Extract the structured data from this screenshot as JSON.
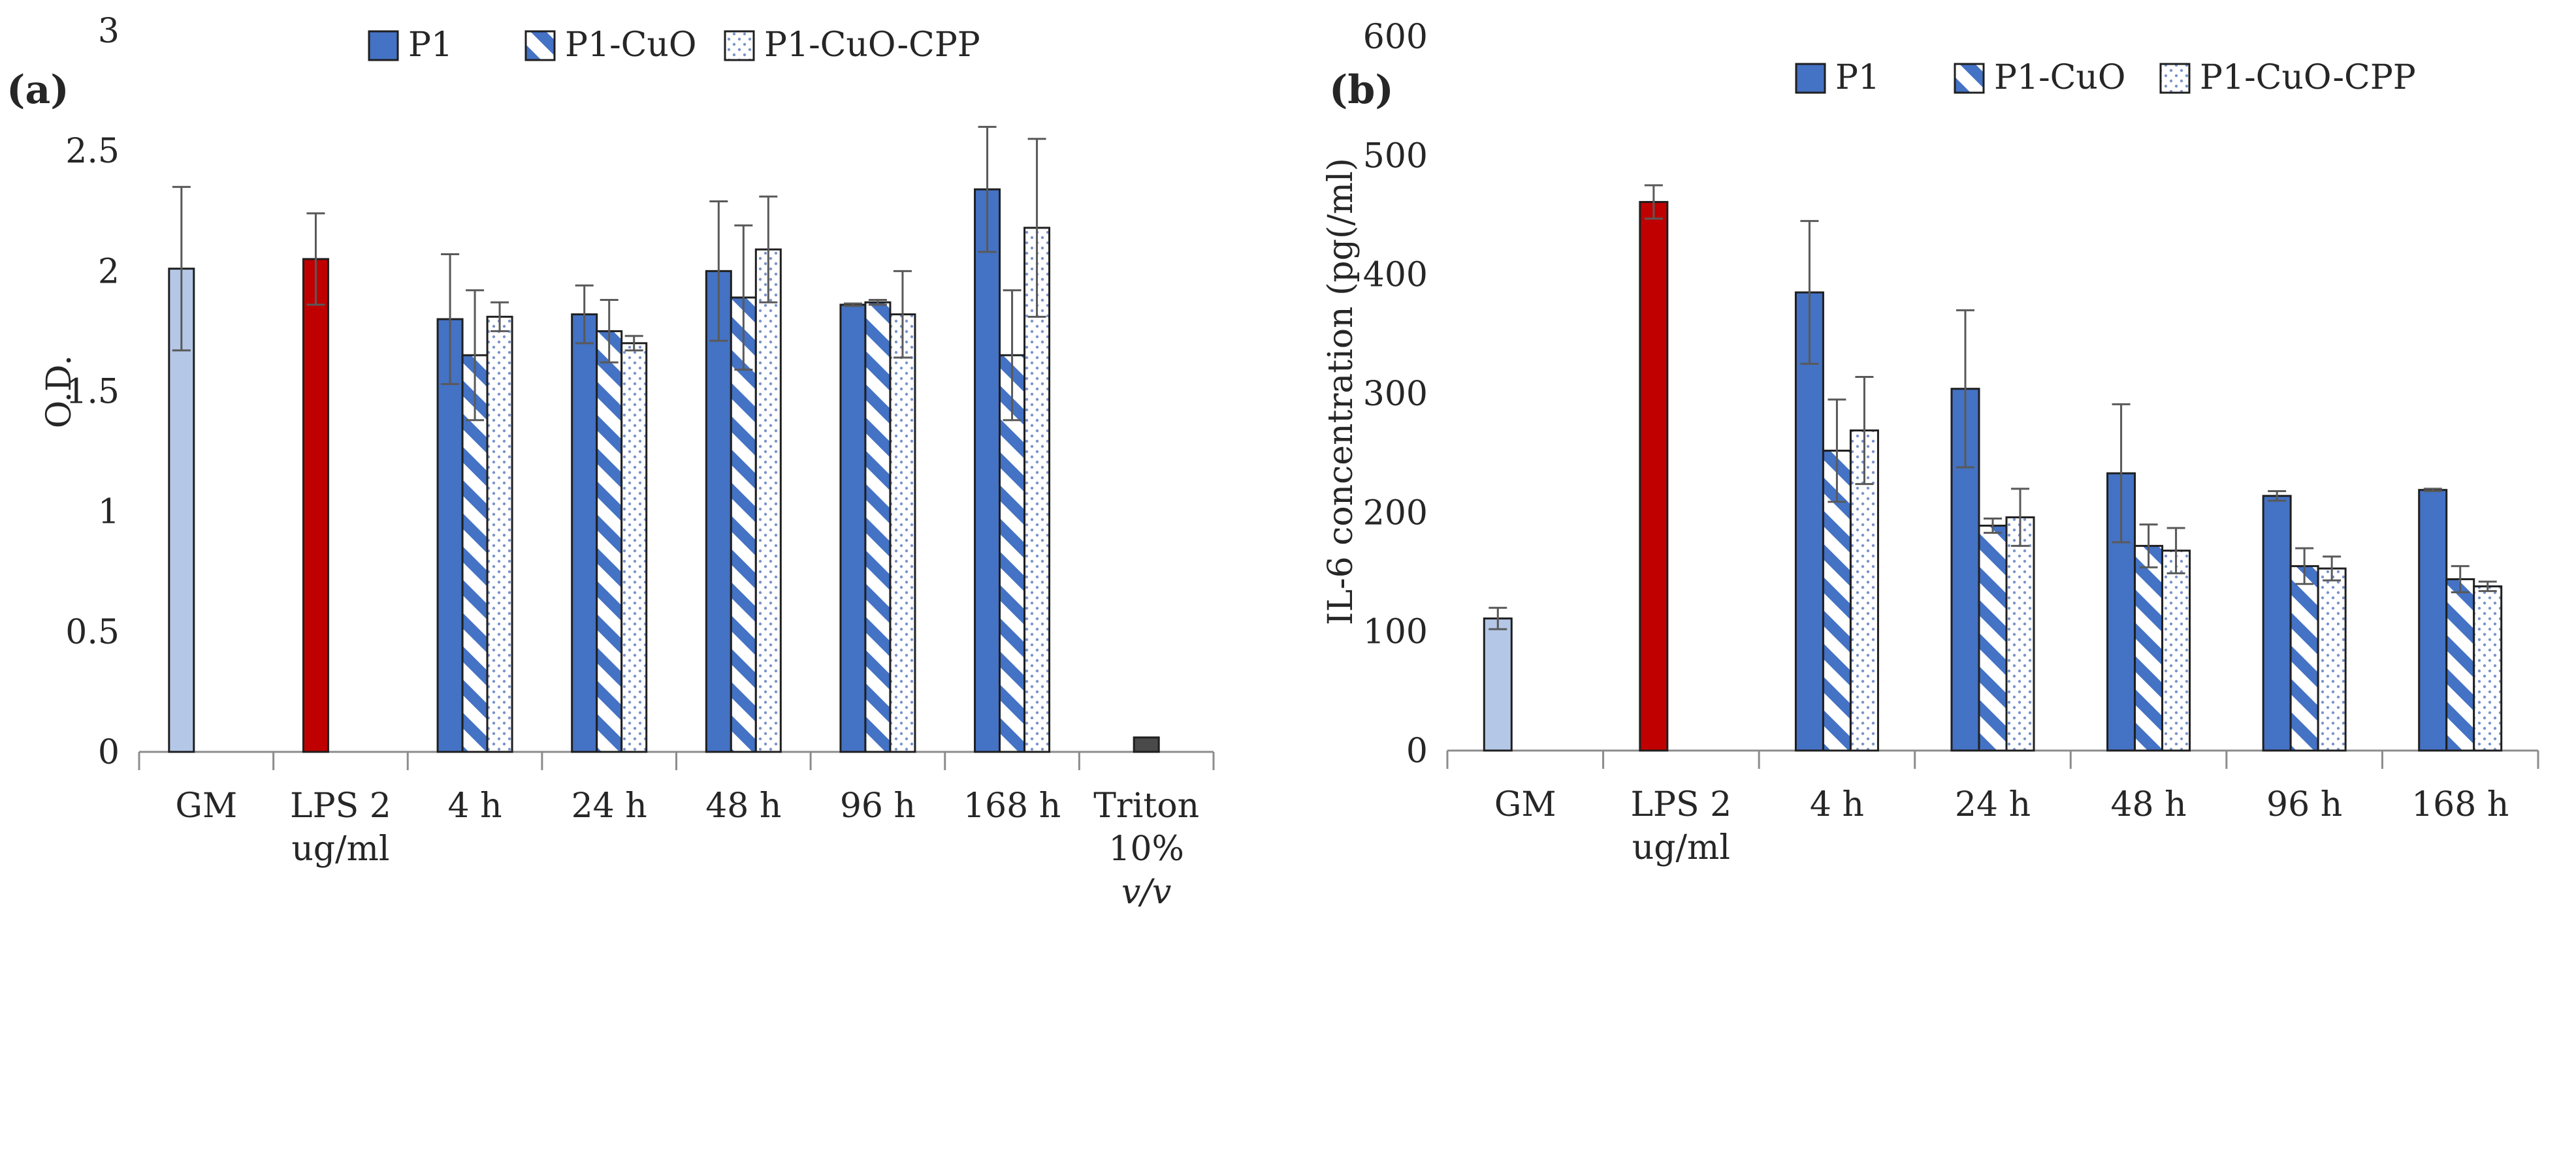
{
  "colors": {
    "gm": "#b4c7e7",
    "lps": "#c00000",
    "p1": "#4472c4",
    "triton": "#4a4a4a",
    "stripe": "#4472c4",
    "dots": "#7a93c9"
  },
  "legend": [
    {
      "key": "P1",
      "label": "P1",
      "pattern": "solid"
    },
    {
      "key": "P1-CuO",
      "label": "P1-CuO",
      "pattern": "stripes"
    },
    {
      "key": "P1-CuO-CPP",
      "label": "P1-CuO-CPP",
      "pattern": "dots"
    }
  ],
  "chart_data": [
    {
      "panel": "(a)",
      "type": "bar",
      "title": "",
      "xlabel": "",
      "ylabel": "O.D.",
      "ylim": [
        0,
        3
      ],
      "yticks": [
        "0",
        "0.5",
        "1",
        "1.5",
        "2",
        "2.5",
        "3"
      ],
      "ytick_values": [
        0,
        0.5,
        1,
        1.5,
        2,
        2.5,
        3
      ],
      "legend_position": "top",
      "groups": [
        {
          "label": [
            "GM"
          ],
          "bars": [
            {
              "series": "GM",
              "value": 2.01,
              "error": 0.34,
              "color": "gm",
              "pattern": "solid"
            }
          ]
        },
        {
          "label": [
            "LPS 2",
            "ug/ml"
          ],
          "bars": [
            {
              "series": "LPS",
              "value": 2.05,
              "error": 0.19,
              "color": "lps",
              "pattern": "solid"
            }
          ]
        },
        {
          "label": [
            "4 h"
          ],
          "bars": [
            {
              "series": "P1",
              "value": 1.8,
              "error": 0.27,
              "pattern": "solid"
            },
            {
              "series": "P1-CuO",
              "value": 1.65,
              "error": 0.27,
              "pattern": "stripes"
            },
            {
              "series": "P1-CuO-CPP",
              "value": 1.81,
              "error": 0.06,
              "pattern": "dots"
            }
          ]
        },
        {
          "label": [
            "24 h"
          ],
          "bars": [
            {
              "series": "P1",
              "value": 1.82,
              "error": 0.12,
              "pattern": "solid"
            },
            {
              "series": "P1-CuO",
              "value": 1.75,
              "error": 0.13,
              "pattern": "stripes"
            },
            {
              "series": "P1-CuO-CPP",
              "value": 1.7,
              "error": 0.03,
              "pattern": "dots"
            }
          ]
        },
        {
          "label": [
            "48 h"
          ],
          "bars": [
            {
              "series": "P1",
              "value": 2.0,
              "error": 0.29,
              "pattern": "solid"
            },
            {
              "series": "P1-CuO",
              "value": 1.89,
              "error": 0.3,
              "pattern": "stripes"
            },
            {
              "series": "P1-CuO-CPP",
              "value": 2.09,
              "error": 0.22,
              "pattern": "dots"
            }
          ]
        },
        {
          "label": [
            "96 h"
          ],
          "bars": [
            {
              "series": "P1",
              "value": 1.86,
              "error": 0.005,
              "pattern": "solid"
            },
            {
              "series": "P1-CuO",
              "value": 1.87,
              "error": 0.01,
              "pattern": "stripes"
            },
            {
              "series": "P1-CuO-CPP",
              "value": 1.82,
              "error": 0.18,
              "pattern": "dots"
            }
          ]
        },
        {
          "label": [
            "168 h"
          ],
          "bars": [
            {
              "series": "P1",
              "value": 2.34,
              "error": 0.26,
              "pattern": "solid"
            },
            {
              "series": "P1-CuO",
              "value": 1.65,
              "error": 0.27,
              "pattern": "stripes"
            },
            {
              "series": "P1-CuO-CPP",
              "value": 2.18,
              "error": 0.37,
              "pattern": "dots"
            }
          ]
        },
        {
          "label": [
            "Triton",
            "10%",
            "v/v"
          ],
          "italic_lines": [
            2
          ],
          "bars": [
            {
              "series": "Triton",
              "value": 0.06,
              "error": 0,
              "color": "triton",
              "pattern": "solid"
            }
          ]
        }
      ]
    },
    {
      "panel": "(b)",
      "type": "bar",
      "title": "",
      "xlabel": "",
      "ylabel": "IL-6 concentration (pg(/ml)",
      "ylim": [
        0,
        600
      ],
      "yticks": [
        "0",
        "100",
        "200",
        "300",
        "400",
        "500",
        "600"
      ],
      "ytick_values": [
        0,
        100,
        200,
        300,
        400,
        500,
        600
      ],
      "legend_position": "top",
      "groups": [
        {
          "label": [
            "GM"
          ],
          "bars": [
            {
              "series": "GM",
              "value": 111,
              "error": 9,
              "color": "gm",
              "pattern": "solid"
            }
          ]
        },
        {
          "label": [
            "LPS 2",
            "ug/ml"
          ],
          "bars": [
            {
              "series": "LPS",
              "value": 461,
              "error": 14,
              "color": "lps",
              "pattern": "solid"
            }
          ]
        },
        {
          "label": [
            "4 h"
          ],
          "bars": [
            {
              "series": "P1",
              "value": 385,
              "error": 60,
              "pattern": "solid"
            },
            {
              "series": "P1-CuO",
              "value": 252,
              "error": 43,
              "pattern": "stripes"
            },
            {
              "series": "P1-CuO-CPP",
              "value": 269,
              "error": 45,
              "pattern": "dots"
            }
          ]
        },
        {
          "label": [
            "24 h"
          ],
          "bars": [
            {
              "series": "P1",
              "value": 304,
              "error": 66,
              "pattern": "solid"
            },
            {
              "series": "P1-CuO",
              "value": 189,
              "error": 6,
              "pattern": "stripes"
            },
            {
              "series": "P1-CuO-CPP",
              "value": 196,
              "error": 24,
              "pattern": "dots"
            }
          ]
        },
        {
          "label": [
            "48 h"
          ],
          "bars": [
            {
              "series": "P1",
              "value": 233,
              "error": 58,
              "pattern": "solid"
            },
            {
              "series": "P1-CuO",
              "value": 172,
              "error": 18,
              "pattern": "stripes"
            },
            {
              "series": "P1-CuO-CPP",
              "value": 168,
              "error": 19,
              "pattern": "dots"
            }
          ]
        },
        {
          "label": [
            "96 h"
          ],
          "bars": [
            {
              "series": "P1",
              "value": 214,
              "error": 4,
              "pattern": "solid"
            },
            {
              "series": "P1-CuO",
              "value": 155,
              "error": 15,
              "pattern": "stripes"
            },
            {
              "series": "P1-CuO-CPP",
              "value": 153,
              "error": 10,
              "pattern": "dots"
            }
          ]
        },
        {
          "label": [
            "168 h"
          ],
          "bars": [
            {
              "series": "P1",
              "value": 219,
              "error": 1,
              "pattern": "solid"
            },
            {
              "series": "P1-CuO",
              "value": 144,
              "error": 11,
              "pattern": "stripes"
            },
            {
              "series": "P1-CuO-CPP",
              "value": 138,
              "error": 4,
              "pattern": "dots"
            }
          ]
        }
      ]
    }
  ]
}
